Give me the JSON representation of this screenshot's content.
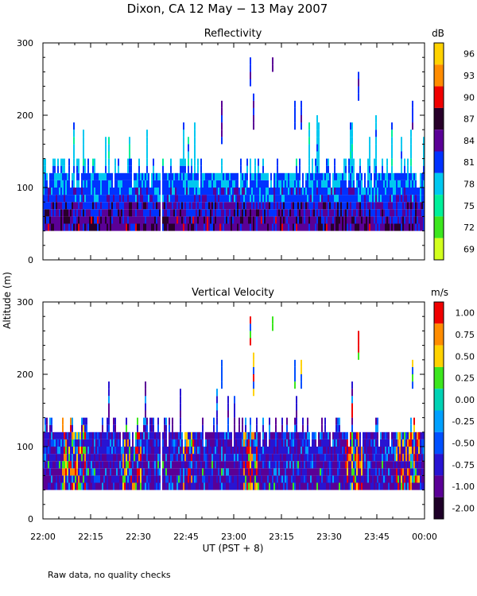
{
  "title": "Dixon, CA 12 May − 13 May 2007",
  "ylabel": "Altitude (m)",
  "xlabel": "UT   (PST + 8)",
  "footnote": "Raw data, no quality checks",
  "x_ticks": [
    "22:00",
    "22:15",
    "22:30",
    "22:45",
    "23:00",
    "23:15",
    "23:30",
    "23:45",
    "00:00"
  ],
  "y_ticks": [
    "0",
    "100",
    "200",
    "300"
  ],
  "chart_data": [
    {
      "type": "heatmap",
      "title": "Reflectivity",
      "units": "dB",
      "xlim_minutes_after_2200": [
        0,
        120
      ],
      "ylim": [
        0,
        300
      ],
      "typical_echo": {
        "base_m": 40,
        "dense_top_m": 120,
        "max_frequent_top_m": 140,
        "occasional_top_m": 200
      },
      "colorbar": {
        "labels": [
          "96",
          "93",
          "90",
          "87",
          "84",
          "81",
          "78",
          "75",
          "72",
          "69"
        ],
        "colors": [
          "#ffd200",
          "#ff8c00",
          "#f00000",
          "#28002a",
          "#5a0096",
          "#0032ff",
          "#00c8f0",
          "#00f09a",
          "#3ce61e",
          "#d2ff1e"
        ]
      },
      "sparse_echoes": [
        {
          "minute": 56,
          "bottom": 160,
          "top": 220
        },
        {
          "minute": 65,
          "bottom": 240,
          "top": 280
        },
        {
          "minute": 66,
          "bottom": 180,
          "top": 230
        },
        {
          "minute": 72,
          "bottom": 260,
          "top": 280
        },
        {
          "minute": 79,
          "bottom": 180,
          "top": 220
        },
        {
          "minute": 81,
          "bottom": 180,
          "top": 220
        },
        {
          "minute": 99,
          "bottom": 220,
          "top": 260
        },
        {
          "minute": 116,
          "bottom": 180,
          "top": 220
        }
      ]
    },
    {
      "type": "heatmap",
      "title": "Vertical Velocity",
      "units": "m/s",
      "xlim_minutes_after_2200": [
        0,
        120
      ],
      "ylim": [
        0,
        300
      ],
      "typical_echo": {
        "base_m": 40,
        "dense_top_m": 120,
        "max_frequent_top_m": 140,
        "occasional_top_m": 200
      },
      "colorbar": {
        "labels": [
          "1.00",
          "0.75",
          "0.50",
          "0.25",
          "0.00",
          "-0.25",
          "-0.50",
          "-0.75",
          "-1.00",
          "-2.00"
        ],
        "colors": [
          "#f00000",
          "#ff8c00",
          "#ffd200",
          "#3ce61e",
          "#00d2b4",
          "#00a0ff",
          "#0050ff",
          "#2814d2",
          "#5a0096",
          "#1e0028"
        ]
      },
      "sparse_echoes": [
        {
          "minute": 56,
          "bottom": 180,
          "top": 220
        },
        {
          "minute": 65,
          "bottom": 240,
          "top": 280
        },
        {
          "minute": 66,
          "bottom": 170,
          "top": 230
        },
        {
          "minute": 72,
          "bottom": 260,
          "top": 280
        },
        {
          "minute": 79,
          "bottom": 180,
          "top": 220
        },
        {
          "minute": 81,
          "bottom": 180,
          "top": 220
        },
        {
          "minute": 99,
          "bottom": 220,
          "top": 260
        },
        {
          "minute": 116,
          "bottom": 180,
          "top": 220
        }
      ]
    }
  ]
}
